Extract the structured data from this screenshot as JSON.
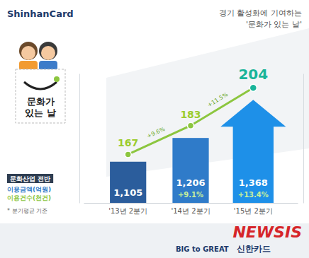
{
  "chart_data": {
    "type": "bar",
    "title": "경기 활성화에 기여하는",
    "subtitle": "'문화가 있는 날'",
    "brand": "ShinhanCard",
    "legend_title": "문화산업 전반",
    "note": "* 분기평균 기준",
    "annotations": [
      "문화가 있는 날",
      "BIG to GREAT",
      "신한카드",
      "NEWSIS"
    ],
    "categories": [
      "'13년 2분기",
      "'14년 2분기",
      "'15년 2분기"
    ],
    "series": [
      {
        "name": "이용금액(억원)",
        "type": "bar",
        "colors": [
          "#2b5d9c",
          "#2f7bc9",
          "#1e90e8"
        ],
        "values": [
          1105,
          1206,
          1368
        ],
        "value_labels": [
          "1,105",
          "1,206",
          "1,368"
        ],
        "change_labels": [
          null,
          "+9.1%",
          "+13.4%"
        ]
      },
      {
        "name": "이용건수(천건)",
        "type": "line",
        "axis": "y2",
        "color": "#8cc63f",
        "marker": "circle",
        "values": [
          167,
          183,
          204
        ],
        "change_labels": [
          null,
          "+9.6%",
          "+11.5%"
        ]
      }
    ],
    "ylim": [
      930,
      1480
    ],
    "yticks": [],
    "y2lim": [
      140,
      212
    ],
    "y2ticks": [],
    "data_labels": true,
    "tick_labels": "x",
    "legend": "left"
  }
}
